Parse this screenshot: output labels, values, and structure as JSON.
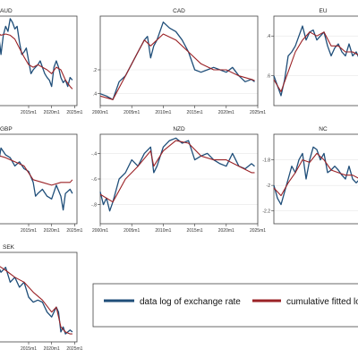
{
  "colors": {
    "data": "#1f4e79",
    "fitted": "#9b2226"
  },
  "legend": {
    "data_label": "data log of exchange rate",
    "fitted_label": "cumulative fitted lo"
  },
  "chart_data": [
    {
      "type": "line",
      "title": "AUD",
      "x_ticks": [
        2015,
        2020,
        2025
      ],
      "x_tick_labels": [
        "2015m1",
        "2020m1",
        "2025m1"
      ],
      "y_ticks": [],
      "y_tick_labels": [],
      "xlim": [
        2008,
        2025.5
      ],
      "ylim": [
        -0.5,
        0.2
      ],
      "series": [
        {
          "name": "data log of exchange rate",
          "x": [
            2008,
            2008.5,
            2009,
            2009.5,
            2010,
            2010.5,
            2011,
            2011.5,
            2012,
            2012.5,
            2013,
            2013.5,
            2014,
            2014.5,
            2015,
            2015.5,
            2016,
            2016.5,
            2017,
            2017.5,
            2018,
            2018.5,
            2019,
            2019.5,
            2020,
            2020.5,
            2021,
            2021.5,
            2022,
            2022.5,
            2023,
            2023.5,
            2024,
            2024.5
          ],
          "y": [
            0.1,
            0.05,
            -0.1,
            0.05,
            0.12,
            0.08,
            0.18,
            0.15,
            0.1,
            0.12,
            0.0,
            -0.1,
            -0.08,
            -0.05,
            -0.15,
            -0.25,
            -0.22,
            -0.2,
            -0.18,
            -0.15,
            -0.2,
            -0.25,
            -0.28,
            -0.3,
            -0.35,
            -0.2,
            -0.15,
            -0.2,
            -0.28,
            -0.32,
            -0.3,
            -0.35,
            -0.28,
            -0.3
          ]
        },
        {
          "name": "cumulative fitted lo",
          "x": [
            2008,
            2009,
            2010,
            2011,
            2012,
            2013,
            2014,
            2015,
            2016,
            2017,
            2018,
            2019,
            2020,
            2021,
            2022,
            2023,
            2024,
            2024.5
          ],
          "y": [
            0.08,
            0.05,
            0.06,
            0.05,
            0.02,
            -0.05,
            -0.12,
            -0.18,
            -0.2,
            -0.18,
            -0.2,
            -0.22,
            -0.25,
            -0.2,
            -0.22,
            -0.3,
            -0.35,
            -0.37
          ]
        }
      ]
    },
    {
      "type": "line",
      "title": "CAD",
      "x_ticks": [
        2000,
        2005,
        2010,
        2015,
        2020,
        2025
      ],
      "x_tick_labels": [
        "2000m1",
        "2005m1",
        "2010m1",
        "2015m1",
        "2020m1",
        "2025m1"
      ],
      "y_ticks": [
        -0.2,
        -0.4
      ],
      "y_tick_labels": [
        ".2",
        ".4"
      ],
      "xlim": [
        2000,
        2025
      ],
      "ylim": [
        -0.5,
        0.25
      ],
      "series": [
        {
          "name": "data log of exchange rate",
          "x": [
            2000,
            2001,
            2002,
            2003,
            2004,
            2005,
            2006,
            2007,
            2007.5,
            2008,
            2008.5,
            2009,
            2010,
            2011,
            2012,
            2013,
            2014,
            2015,
            2016,
            2017,
            2018,
            2019,
            2020,
            2021,
            2022,
            2023,
            2024,
            2024.5
          ],
          "y": [
            -0.4,
            -0.42,
            -0.45,
            -0.3,
            -0.25,
            -0.15,
            -0.05,
            0.05,
            0.08,
            -0.1,
            0.0,
            0.05,
            0.2,
            0.15,
            0.12,
            0.05,
            -0.05,
            -0.2,
            -0.22,
            -0.2,
            -0.18,
            -0.2,
            -0.22,
            -0.18,
            -0.25,
            -0.3,
            -0.28,
            -0.3
          ]
        },
        {
          "name": "cumulative fitted lo",
          "x": [
            2000,
            2002,
            2004,
            2006,
            2007,
            2008,
            2010,
            2012,
            2014,
            2016,
            2018,
            2020,
            2022,
            2024,
            2024.5
          ],
          "y": [
            -0.42,
            -0.45,
            -0.25,
            -0.05,
            0.05,
            0.0,
            0.1,
            0.05,
            -0.05,
            -0.15,
            -0.2,
            -0.2,
            -0.25,
            -0.28,
            -0.29
          ]
        }
      ]
    },
    {
      "type": "line",
      "title": "EU",
      "x_ticks": [],
      "x_tick_labels": [],
      "y_ticks": [
        -0.4,
        -0.6
      ],
      "y_tick_labels": [
        ".4",
        ".6"
      ],
      "xlim": [
        2000,
        2025
      ],
      "ylim": [
        -0.75,
        -0.3
      ],
      "series": [
        {
          "name": "data log of exchange rate",
          "x": [
            2000,
            2001,
            2002,
            2003,
            2004,
            2005,
            2006,
            2007,
            2008,
            2009,
            2010,
            2011,
            2012,
            2013,
            2014,
            2015,
            2016,
            2017,
            2018,
            2019,
            2020,
            2021,
            2022,
            2023,
            2024,
            2024.5
          ],
          "y": [
            -0.6,
            -0.65,
            -0.7,
            -0.62,
            -0.5,
            -0.48,
            -0.45,
            -0.4,
            -0.35,
            -0.42,
            -0.38,
            -0.37,
            -0.42,
            -0.4,
            -0.38,
            -0.45,
            -0.5,
            -0.46,
            -0.44,
            -0.48,
            -0.5,
            -0.44,
            -0.5,
            -0.48,
            -0.52,
            -0.5
          ]
        },
        {
          "name": "cumulative fitted lo",
          "x": [
            2000,
            2002,
            2004,
            2006,
            2008,
            2010,
            2012,
            2014,
            2016,
            2018,
            2020,
            2022,
            2024,
            2024.5
          ],
          "y": [
            -0.62,
            -0.68,
            -0.58,
            -0.48,
            -0.42,
            -0.38,
            -0.4,
            -0.38,
            -0.45,
            -0.45,
            -0.48,
            -0.48,
            -0.5,
            -0.5
          ]
        }
      ]
    },
    {
      "type": "line",
      "title": "GBP",
      "x_ticks": [
        2015,
        2020,
        2025
      ],
      "x_tick_labels": [
        "2015m1",
        "2020m1",
        "2025m1"
      ],
      "y_ticks": [],
      "y_tick_labels": [],
      "xlim": [
        2008,
        2025.5
      ],
      "ylim": [
        -0.5,
        0.15
      ],
      "series": [
        {
          "name": "data log of exchange rate",
          "x": [
            2008,
            2008.5,
            2009,
            2010,
            2011,
            2012,
            2013,
            2014,
            2015,
            2016,
            2016.5,
            2017,
            2018,
            2019,
            2020,
            2021,
            2022,
            2022.5,
            2023,
            2024,
            2024.5
          ],
          "y": [
            0.0,
            -0.05,
            0.05,
            0.0,
            -0.02,
            -0.08,
            -0.05,
            -0.1,
            -0.12,
            -0.2,
            -0.3,
            -0.28,
            -0.25,
            -0.3,
            -0.32,
            -0.22,
            -0.3,
            -0.4,
            -0.28,
            -0.25,
            -0.28
          ]
        },
        {
          "name": "cumulative fitted lo",
          "x": [
            2008,
            2010,
            2012,
            2014,
            2016,
            2018,
            2020,
            2022,
            2024,
            2024.5
          ],
          "y": [
            0.0,
            -0.02,
            -0.05,
            -0.08,
            -0.18,
            -0.2,
            -0.22,
            -0.2,
            -0.2,
            -0.18
          ]
        }
      ]
    },
    {
      "type": "line",
      "title": "NZD",
      "x_ticks": [
        2000,
        2005,
        2010,
        2015,
        2020,
        2025
      ],
      "x_tick_labels": [
        "2000m1",
        "2005m1",
        "2010m1",
        "2015m1",
        "2020m1",
        "2025m1"
      ],
      "y_ticks": [
        -0.4,
        -0.6,
        -0.8
      ],
      "y_tick_labels": [
        "-.4",
        "-.6",
        "-.8"
      ],
      "xlim": [
        2000,
        2025
      ],
      "ylim": [
        -0.95,
        -0.25
      ],
      "series": [
        {
          "name": "data log of exchange rate",
          "x": [
            2000,
            2000.5,
            2001,
            2001.5,
            2002,
            2003,
            2004,
            2005,
            2006,
            2007,
            2008,
            2008.5,
            2009,
            2010,
            2011,
            2012,
            2013,
            2014,
            2015,
            2016,
            2017,
            2018,
            2019,
            2020,
            2021,
            2022,
            2023,
            2024,
            2024.5
          ],
          "y": [
            -0.7,
            -0.8,
            -0.75,
            -0.85,
            -0.78,
            -0.6,
            -0.55,
            -0.45,
            -0.5,
            -0.4,
            -0.35,
            -0.55,
            -0.5,
            -0.35,
            -0.3,
            -0.28,
            -0.32,
            -0.3,
            -0.45,
            -0.42,
            -0.4,
            -0.45,
            -0.48,
            -0.5,
            -0.4,
            -0.5,
            -0.52,
            -0.48,
            -0.5
          ]
        },
        {
          "name": "cumulative fitted lo",
          "x": [
            2000,
            2002,
            2004,
            2006,
            2008,
            2008.5,
            2010,
            2012,
            2014,
            2016,
            2018,
            2020,
            2022,
            2024,
            2024.5
          ],
          "y": [
            -0.72,
            -0.78,
            -0.6,
            -0.5,
            -0.38,
            -0.5,
            -0.38,
            -0.3,
            -0.32,
            -0.42,
            -0.45,
            -0.45,
            -0.5,
            -0.55,
            -0.55
          ]
        }
      ]
    },
    {
      "type": "line",
      "title": "NC",
      "x_ticks": [],
      "x_tick_labels": [],
      "y_ticks": [
        -1.8,
        -2.0,
        -2.2
      ],
      "y_tick_labels": [
        "-1.8",
        "-2",
        "-2.2"
      ],
      "xlim": [
        2000,
        2025
      ],
      "ylim": [
        -2.3,
        -1.6
      ],
      "series": [
        {
          "name": "data log of exchange rate",
          "x": [
            2000,
            2001,
            2002,
            2003,
            2004,
            2005,
            2006,
            2007,
            2008,
            2009,
            2010,
            2011,
            2012,
            2013,
            2014,
            2015,
            2016,
            2017,
            2018,
            2019,
            2020,
            2021,
            2022,
            2023,
            2024,
            2024.5
          ],
          "y": [
            -2.0,
            -2.1,
            -2.15,
            -2.05,
            -1.95,
            -1.85,
            -1.9,
            -1.8,
            -1.75,
            -1.95,
            -1.8,
            -1.7,
            -1.72,
            -1.8,
            -1.75,
            -1.9,
            -1.88,
            -1.85,
            -1.88,
            -1.92,
            -1.95,
            -1.85,
            -1.95,
            -1.98,
            -1.95,
            -1.96
          ]
        },
        {
          "name": "cumulative fitted lo",
          "x": [
            2000,
            2002,
            2004,
            2006,
            2008,
            2010,
            2012,
            2014,
            2016,
            2018,
            2020,
            2022,
            2024,
            2024.5
          ],
          "y": [
            -2.02,
            -2.08,
            -1.98,
            -1.9,
            -1.8,
            -1.82,
            -1.75,
            -1.8,
            -1.88,
            -1.9,
            -1.92,
            -1.92,
            -1.95,
            -1.95
          ]
        }
      ]
    },
    {
      "type": "line",
      "title": "SEK",
      "x_ticks": [
        2015,
        2020,
        2025
      ],
      "x_tick_labels": [
        "2015m1",
        "2020m1",
        "2025m1"
      ],
      "y_ticks": [],
      "y_tick_labels": [],
      "xlim": [
        2008,
        2025.5
      ],
      "ylim": [
        -2.5,
        -1.6
      ],
      "series": [
        {
          "name": "data log of exchange rate",
          "x": [
            2008,
            2009,
            2010,
            2011,
            2012,
            2013,
            2014,
            2015,
            2016,
            2017,
            2018,
            2019,
            2020,
            2021,
            2021.5,
            2022,
            2022.5,
            2023,
            2024,
            2024.5
          ],
          "y": [
            -1.7,
            -1.8,
            -1.75,
            -1.9,
            -1.85,
            -1.95,
            -1.9,
            -2.05,
            -2.1,
            -2.08,
            -2.1,
            -2.2,
            -2.25,
            -2.15,
            -2.2,
            -2.4,
            -2.35,
            -2.42,
            -2.38,
            -2.4
          ]
        },
        {
          "name": "cumulative fitted lo",
          "x": [
            2008,
            2010,
            2012,
            2014,
            2016,
            2018,
            2020,
            2021,
            2022,
            2023,
            2024,
            2024.5
          ],
          "y": [
            -1.72,
            -1.78,
            -1.85,
            -1.9,
            -2.0,
            -2.08,
            -2.2,
            -2.15,
            -2.35,
            -2.4,
            -2.42,
            -2.42
          ]
        }
      ]
    }
  ]
}
